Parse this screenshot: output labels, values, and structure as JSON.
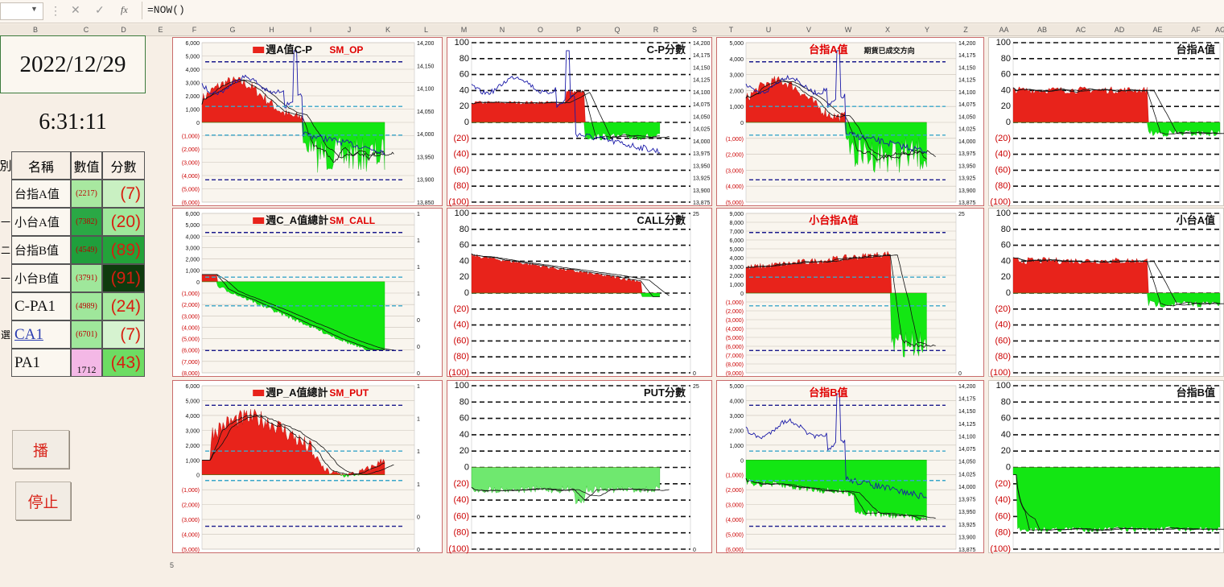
{
  "formula_bar": {
    "formula": "=NOW()",
    "cancel_icon": "close-icon",
    "enter_icon": "check-icon",
    "fx_label": "fx",
    "more_label": "⋮"
  },
  "columns": [
    "B",
    "C",
    "D",
    "E",
    "F",
    "G",
    "H",
    "I",
    "J",
    "K",
    "L",
    "M",
    "N",
    "O",
    "P",
    "Q",
    "R",
    "S",
    "T",
    "U",
    "V",
    "W",
    "X",
    "Y",
    "Z",
    "AA",
    "AB",
    "AC",
    "AD",
    "AE",
    "AF",
    "AG"
  ],
  "sheet": {
    "date": "2022/12/29",
    "time": "6:31:11",
    "header": {
      "left": "別",
      "name": "名稱",
      "value": "數值",
      "score": "分數"
    },
    "rows": [
      {
        "side": "",
        "name": "台指A值",
        "value": "(2217)",
        "score": "(7)"
      },
      {
        "side": "一",
        "name": "小台A值",
        "value": "(7382)",
        "score": "(20)"
      },
      {
        "side": "二",
        "name": "台指B值",
        "value": "(4549)",
        "score": "(89)"
      },
      {
        "side": "一",
        "name": "小台B值",
        "value": "(3791)",
        "score": "(91)"
      },
      {
        "side": "",
        "name": "C-PA1",
        "value": "(4989)",
        "score": "(24)"
      },
      {
        "side": "選",
        "name": "CA1",
        "value": "(6701)",
        "score": "(7)"
      },
      {
        "side": "",
        "name": "PA1",
        "value": "1712",
        "score": "(43)"
      }
    ],
    "row_number_5": "5"
  },
  "buttons": {
    "play": "播",
    "stop": "停止"
  },
  "charts": [
    {
      "title": "週A值C-P",
      "tag": "SM_OP",
      "title_color": "#111111",
      "tag_color": "#e00000",
      "left_ticks": [
        "6,000",
        "5,000",
        "4,000",
        "3,000",
        "2,000",
        "1,000",
        "0",
        "(1,000)",
        "(2,000)",
        "(3,000)",
        "(4,000)",
        "(5,000)",
        "(6,000)"
      ],
      "right_ticks": [
        "14,200",
        "14,150",
        "14,100",
        "14,050",
        "14,000",
        "13,950",
        "13,900",
        "13,850"
      ]
    },
    {
      "title": "C-P分數",
      "tag": "",
      "title_color": "#111111",
      "tag_color": "#e00000",
      "left_ticks": [
        "100",
        "80",
        "60",
        "40",
        "20",
        "0",
        "(20)",
        "(40)",
        "(60)",
        "(80)",
        "(100)"
      ],
      "right_ticks": [
        "14,200",
        "14,175",
        "14,150",
        "14,125",
        "14,100",
        "14,075",
        "14,050",
        "14,025",
        "14,000",
        "13,975",
        "13,950",
        "13,925",
        "13,900",
        "13,875"
      ]
    },
    {
      "title": "台指A值",
      "tag": "期貨已成交方向",
      "title_color": "#e00000",
      "tag_color": "#111111",
      "left_ticks": [
        "5,000",
        "4,000",
        "3,000",
        "2,000",
        "1,000",
        "0",
        "(1,000)",
        "(2,000)",
        "(3,000)",
        "(4,000)",
        "(5,000)"
      ],
      "right_ticks": [
        "14,200",
        "14,175",
        "14,150",
        "14,125",
        "14,100",
        "14,075",
        "14,050",
        "14,025",
        "14,000",
        "13,975",
        "13,950",
        "13,925",
        "13,900",
        "13,875"
      ]
    },
    {
      "title": "台指A值",
      "tag": "",
      "title_color": "#111111",
      "tag_color": "#111111",
      "left_ticks": [
        "100",
        "80",
        "60",
        "40",
        "20",
        "0",
        "(20)",
        "(40)",
        "(60)",
        "(80)",
        "(100)"
      ],
      "right_ticks": []
    },
    {
      "title": "週C_A值總計",
      "tag": "SM_CALL",
      "title_color": "#111111",
      "tag_color": "#e00000",
      "left_ticks": [
        "6,000",
        "5,000",
        "4,000",
        "3,000",
        "2,000",
        "1,000",
        "0",
        "(1,000)",
        "(2,000)",
        "(3,000)",
        "(4,000)",
        "(5,000)",
        "(6,000)",
        "(7,000)",
        "(8,000)"
      ],
      "right_ticks": [
        "1",
        "1",
        "1",
        "1",
        "0",
        "0",
        "0"
      ]
    },
    {
      "title": "CALL分數",
      "tag": "",
      "title_color": "#111111",
      "tag_color": "#e00000",
      "left_ticks": [
        "100",
        "80",
        "60",
        "40",
        "20",
        "0",
        "(20)",
        "(40)",
        "(60)",
        "(80)",
        "(100)"
      ],
      "right_ticks": [
        "25",
        "0"
      ]
    },
    {
      "title": "小台指A值",
      "tag": "",
      "title_color": "#e00000",
      "tag_color": "#111111",
      "left_ticks": [
        "9,000",
        "8,000",
        "7,000",
        "6,000",
        "5,000",
        "4,000",
        "3,000",
        "2,000",
        "1,000",
        "0",
        "(1,000)",
        "(2,000)",
        "(3,000)",
        "(4,000)",
        "(5,000)",
        "(6,000)",
        "(7,000)",
        "(8,000)",
        "(9,000)"
      ],
      "right_ticks": [
        "25",
        "0"
      ]
    },
    {
      "title": "小台A值",
      "tag": "",
      "title_color": "#111111",
      "tag_color": "#111111",
      "left_ticks": [
        "100",
        "80",
        "60",
        "40",
        "20",
        "0",
        "(20)",
        "(40)",
        "(60)",
        "(80)",
        "(100)"
      ],
      "right_ticks": []
    },
    {
      "title": "週P_A值總計",
      "tag": "SM_PUT",
      "title_color": "#111111",
      "tag_color": "#e00000",
      "left_ticks": [
        "6,000",
        "5,000",
        "4,000",
        "3,000",
        "2,000",
        "1,000",
        "0",
        "(1,000)",
        "(2,000)",
        "(3,000)",
        "(4,000)",
        "(5,000)"
      ],
      "right_ticks": [
        "1",
        "1",
        "1",
        "1",
        "0",
        "0"
      ]
    },
    {
      "title": "PUT分數",
      "tag": "",
      "title_color": "#111111",
      "tag_color": "#e00000",
      "left_ticks": [
        "100",
        "80",
        "60",
        "40",
        "20",
        "0",
        "(20)",
        "(40)",
        "(60)",
        "(80)",
        "(100)"
      ],
      "right_ticks": [
        "25",
        "0"
      ]
    },
    {
      "title": "台指B值",
      "tag": "",
      "title_color": "#e00000",
      "tag_color": "#111111",
      "left_ticks": [
        "5,000",
        "4,000",
        "3,000",
        "2,000",
        "1,000",
        "0",
        "(1,000)",
        "(2,000)",
        "(3,000)",
        "(4,000)",
        "(5,000)",
        "(6,000)"
      ],
      "right_ticks": [
        "14,200",
        "14,175",
        "14,150",
        "14,125",
        "14,100",
        "14,075",
        "14,050",
        "14,025",
        "14,000",
        "13,975",
        "13,950",
        "13,925",
        "13,900",
        "13,875"
      ]
    },
    {
      "title": "台指B值",
      "tag": "",
      "title_color": "#111111",
      "tag_color": "#111111",
      "left_ticks": [
        "100",
        "80",
        "60",
        "40",
        "20",
        "0",
        "(20)",
        "(40)",
        "(60)",
        "(80)",
        "(100)"
      ],
      "right_ticks": []
    }
  ],
  "colors": {
    "positive": "#e8231b",
    "negative": "#13e613",
    "price_line": "#1a1aa8",
    "dash_dark": "#1a1a8c",
    "dash_light": "#3aa7c9"
  }
}
